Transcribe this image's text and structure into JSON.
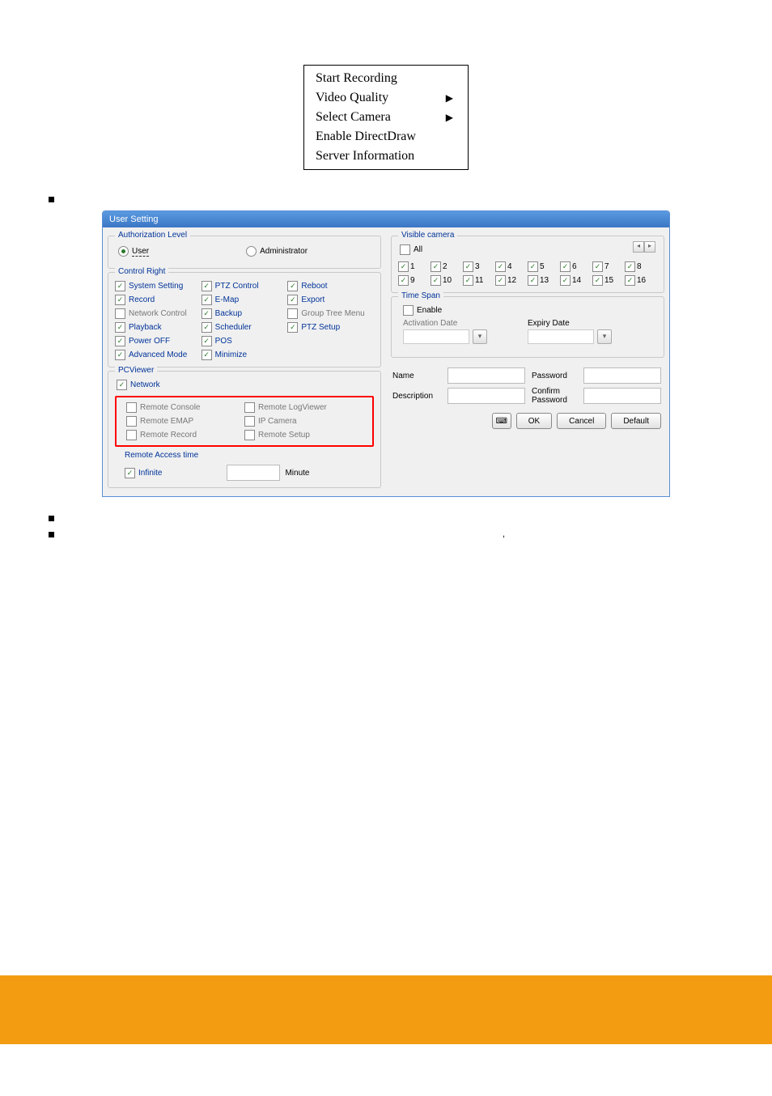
{
  "context_menu": [
    {
      "label": "Start Recording",
      "submenu": false
    },
    {
      "label": "Video Quality",
      "submenu": true
    },
    {
      "label": "Select Camera",
      "submenu": true
    },
    {
      "label": "Enable DirectDraw",
      "submenu": false
    },
    {
      "label": "Server Information",
      "submenu": false
    }
  ],
  "dialog": {
    "title": "User Setting",
    "auth_level": {
      "title": "Authorization Level",
      "user": "User",
      "admin": "Administrator"
    },
    "control_right": {
      "title": "Control Right",
      "col1": [
        {
          "label": "System Setting",
          "checked": true,
          "color": "blue"
        },
        {
          "label": "Record",
          "checked": true,
          "color": "blue"
        },
        {
          "label": "Network Control",
          "checked": false,
          "color": "gray"
        },
        {
          "label": "Playback",
          "checked": true,
          "color": "blue"
        },
        {
          "label": "Power OFF",
          "checked": true,
          "color": "blue"
        },
        {
          "label": "Advanced Mode",
          "checked": true,
          "color": "blue"
        }
      ],
      "col2": [
        {
          "label": "PTZ Control",
          "checked": true,
          "color": "blue"
        },
        {
          "label": "E-Map",
          "checked": true,
          "color": "blue"
        },
        {
          "label": "Backup",
          "checked": true,
          "color": "blue"
        },
        {
          "label": "Scheduler",
          "checked": true,
          "color": "blue"
        },
        {
          "label": "POS",
          "checked": true,
          "color": "blue"
        },
        {
          "label": "Minimize",
          "checked": true,
          "color": "blue"
        }
      ],
      "col3": [
        {
          "label": "Reboot",
          "checked": true,
          "color": "blue"
        },
        {
          "label": "Export",
          "checked": true,
          "color": "blue"
        },
        {
          "label": "Group Tree Menu",
          "checked": false,
          "color": "gray"
        },
        {
          "label": "PTZ Setup",
          "checked": true,
          "color": "blue"
        }
      ]
    },
    "pcviewer": {
      "title": "PCViewer",
      "network": {
        "label": "Network",
        "checked": true
      },
      "col1": [
        {
          "label": "Remote Console",
          "checked": false
        },
        {
          "label": "Remote EMAP",
          "checked": false
        },
        {
          "label": "Remote Record",
          "checked": false
        }
      ],
      "col2": [
        {
          "label": "Remote LogViewer",
          "checked": false
        },
        {
          "label": "IP Camera",
          "checked": false
        },
        {
          "label": "Remote Setup",
          "checked": false
        }
      ],
      "access": {
        "title": "Remote Access time",
        "infinite": {
          "label": "Infinite",
          "checked": true
        },
        "minute": "Minute"
      }
    },
    "visible_camera": {
      "title": "Visible camera",
      "all": "All",
      "items": [
        1,
        2,
        3,
        4,
        5,
        6,
        7,
        8,
        9,
        10,
        11,
        12,
        13,
        14,
        15,
        16
      ]
    },
    "timespan": {
      "title": "Time Span",
      "enable": "Enable",
      "activation": "Activation Date",
      "expiry": "Expiry Date"
    },
    "form": {
      "name": "Name",
      "description": "Description",
      "password": "Password",
      "confirm": "Confirm Password"
    },
    "buttons": {
      "ok": "OK",
      "cancel": "Cancel",
      "default": "Default"
    }
  }
}
